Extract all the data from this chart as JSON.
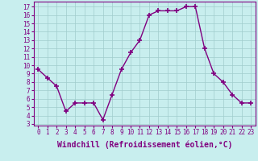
{
  "x": [
    0,
    1,
    2,
    3,
    4,
    5,
    6,
    7,
    8,
    9,
    10,
    11,
    12,
    13,
    14,
    15,
    16,
    17,
    18,
    19,
    20,
    21,
    22,
    23
  ],
  "y": [
    9.5,
    8.5,
    7.5,
    4.5,
    5.5,
    5.5,
    5.5,
    3.5,
    6.5,
    9.5,
    11.5,
    13.0,
    16.0,
    16.5,
    16.5,
    16.5,
    17.0,
    17.0,
    12.0,
    9.0,
    8.0,
    6.5,
    5.5,
    5.5
  ],
  "line_color": "#800080",
  "marker": "+",
  "marker_size": 5,
  "marker_lw": 1.2,
  "bg_color": "#c8eeee",
  "grid_color": "#a0cccc",
  "xlabel": "Windchill (Refroidissement éolien,°C)",
  "yticks": [
    3,
    4,
    5,
    6,
    7,
    8,
    9,
    10,
    11,
    12,
    13,
    14,
    15,
    16,
    17
  ],
  "xlim": [
    -0.5,
    23.5
  ],
  "ylim": [
    2.8,
    17.6
  ],
  "xticks": [
    0,
    1,
    2,
    3,
    4,
    5,
    6,
    7,
    8,
    9,
    10,
    11,
    12,
    13,
    14,
    15,
    16,
    17,
    18,
    19,
    20,
    21,
    22,
    23
  ],
  "tick_fontsize": 5.5,
  "label_fontsize": 7.0,
  "linewidth": 1.0
}
